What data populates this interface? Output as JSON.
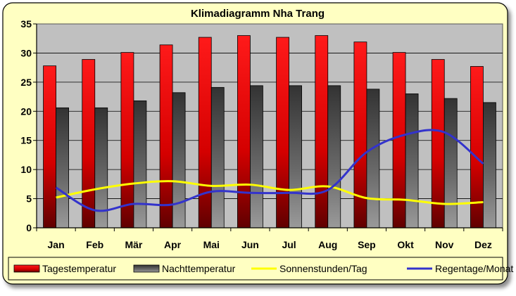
{
  "chart_data": {
    "type": "bar",
    "title": "Klimadiagramm Nha Trang",
    "categories": [
      "Jan",
      "Feb",
      "Mär",
      "Apr",
      "Mai",
      "Jun",
      "Jul",
      "Aug",
      "Sep",
      "Okt",
      "Nov",
      "Dez"
    ],
    "ylim": [
      0,
      35
    ],
    "yticks": [
      0,
      5,
      10,
      15,
      20,
      25,
      30,
      35
    ],
    "grid": true,
    "legend_position": "bottom",
    "series": [
      {
        "name": "Tagestemperatur",
        "kind": "bar",
        "color": "#e8000a",
        "values": [
          27.8,
          28.9,
          30.1,
          31.4,
          32.7,
          33.0,
          32.7,
          33.0,
          31.9,
          30.1,
          28.9,
          27.7
        ]
      },
      {
        "name": "Nachttemperatur",
        "kind": "bar",
        "color": "#555555",
        "values": [
          20.6,
          20.6,
          21.8,
          23.2,
          24.1,
          24.4,
          24.4,
          24.4,
          23.8,
          23.0,
          22.2,
          21.5
        ]
      },
      {
        "name": "Sonnenstunden/Tag",
        "kind": "line",
        "color": "#ffff00",
        "values": [
          5.2,
          6.6,
          7.6,
          8.0,
          7.2,
          7.4,
          6.5,
          7.1,
          5.1,
          4.8,
          4.1,
          4.4
        ]
      },
      {
        "name": "Regentage/Monat",
        "kind": "line",
        "color": "#3333cc",
        "values": [
          6.9,
          3.0,
          4.1,
          4.0,
          6.2,
          6.0,
          6.0,
          6.5,
          13.0,
          16.0,
          16.4,
          11.0
        ]
      }
    ]
  }
}
